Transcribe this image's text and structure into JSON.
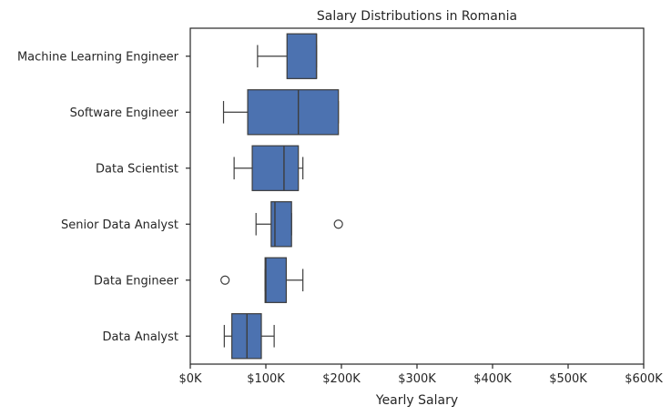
{
  "chart_data": {
    "type": "boxplot",
    "orientation": "horizontal",
    "title": "Salary Distributions in Romania",
    "xlabel": "Yearly Salary",
    "ylabel": "",
    "xlim": [
      0,
      600000
    ],
    "xticks": [
      0,
      100000,
      200000,
      300000,
      400000,
      500000,
      600000
    ],
    "xtick_labels": [
      "$0K",
      "$100K",
      "$200K",
      "$300K",
      "$400K",
      "$500K",
      "$600K"
    ],
    "grid": false,
    "box_color": "#4c72b0",
    "edge_color": "#3d3d3d",
    "categories": [
      "Machine Learning Engineer",
      "Software Engineer",
      "Data Scientist",
      "Senior Data Analyst",
      "Data Engineer",
      "Data Analyst"
    ],
    "boxes": [
      {
        "label": "Machine Learning Engineer",
        "whislo": 89000,
        "q1": 128000,
        "med": 167000,
        "q3": 167000,
        "whishi": 167000,
        "fliers": []
      },
      {
        "label": "Software Engineer",
        "whislo": 44000,
        "q1": 76000,
        "med": 143000,
        "q3": 196000,
        "whishi": 196000,
        "fliers": []
      },
      {
        "label": "Data Scientist",
        "whislo": 58000,
        "q1": 82000,
        "med": 124000,
        "q3": 143000,
        "whishi": 149000,
        "fliers": []
      },
      {
        "label": "Senior Data Analyst",
        "whislo": 87000,
        "q1": 107000,
        "med": 112000,
        "q3": 134000,
        "whishi": 134000,
        "fliers": [
          196000
        ]
      },
      {
        "label": "Data Engineer",
        "whislo": 99000,
        "q1": 99000,
        "med": 100000,
        "q3": 127000,
        "whishi": 149000,
        "fliers": [
          46000
        ]
      },
      {
        "label": "Data Analyst",
        "whislo": 45000,
        "q1": 55000,
        "med": 75000,
        "q3": 94000,
        "whishi": 111000,
        "fliers": []
      }
    ]
  }
}
